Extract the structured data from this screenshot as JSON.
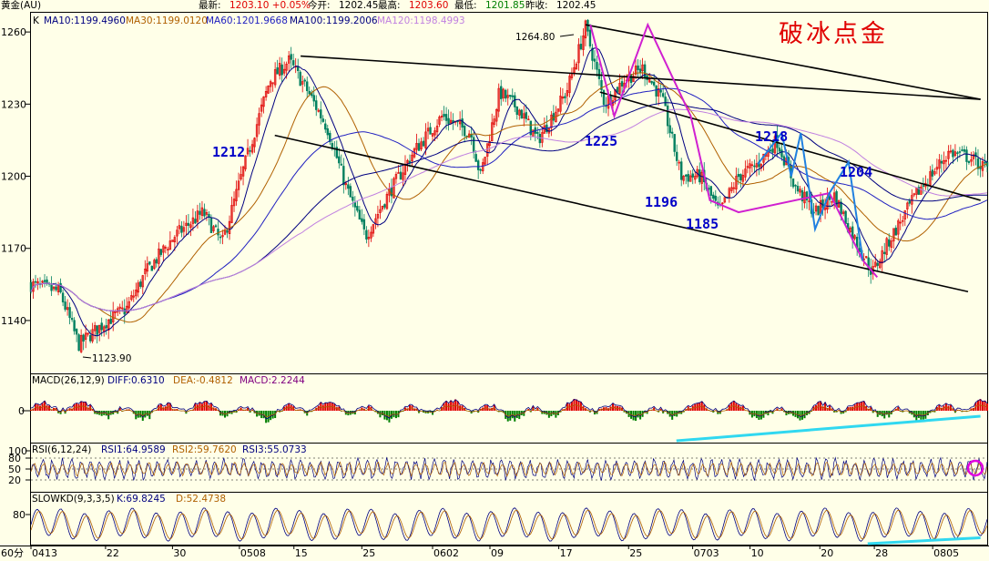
{
  "header": {
    "title": "黄金(AU)",
    "latest_label": "最新:",
    "latest": "1203.10 +0.05%",
    "open_label": "今开:",
    "open": "1202.45",
    "high_label": "最高:",
    "high": "1203.60",
    "low_label": "最低:",
    "low": "1201.85",
    "prev_label": "昨收:",
    "prev": "1202.45"
  },
  "main_panel": {
    "tag": "K",
    "ma_legend": [
      {
        "label": "MA10:1199.4960",
        "color": "#000080"
      },
      {
        "label": "MA30:1199.0120",
        "color": "#b06000"
      },
      {
        "label": "MA60:1201.9668",
        "color": "#2020c0"
      },
      {
        "label": "MA100:1199.2006",
        "color": "#000080"
      },
      {
        "label": "MA120:1198.4993",
        "color": "#c080e0"
      }
    ],
    "title": "破冰点金",
    "title_color": "#e00000",
    "price_labels": {
      "high": "1264.80",
      "low": "1123.90"
    },
    "annotations": [
      "1212",
      "1225",
      "1196",
      "1185",
      "1218",
      "1204"
    ],
    "annotation_color": "#0000c8"
  },
  "macd_panel": {
    "label": "MACD(26,12,9)",
    "diff": "DIFF:0.6310",
    "dea": "DEA:-0.4812",
    "macd": "MACD:2.2244",
    "tick": "0"
  },
  "rsi_panel": {
    "label": "RSI(6,12,24)",
    "rsi1": "RSI1:64.9589",
    "rsi2": "RSI2:59.7620",
    "rsi3": "RSI3:55.0733"
  },
  "kd_panel": {
    "label": "SLOWKD(9,3,3,5)",
    "k": "K:69.8245",
    "d": "D:52.4738",
    "tick": "80"
  },
  "period_label": "60分",
  "chart_data": {
    "type": "line",
    "title": "破冰点金",
    "ylim": [
      1118,
      1268
    ],
    "y_ticks": [
      1140,
      1170,
      1200,
      1230,
      1260
    ],
    "rsi_ticks": [
      20,
      50,
      80,
      100
    ],
    "x_ticks": [
      "0413",
      "22",
      "30",
      "0508",
      "15",
      "25",
      "0602",
      "09",
      "17",
      "25",
      "0703",
      "10",
      "20",
      "28",
      "0805"
    ],
    "x_tick_pos": [
      0,
      0.078,
      0.148,
      0.218,
      0.275,
      0.346,
      0.42,
      0.48,
      0.552,
      0.625,
      0.692,
      0.752,
      0.825,
      0.882,
      0.943
    ],
    "price_path": [
      [
        0,
        1155
      ],
      [
        0.03,
        1152
      ],
      [
        0.05,
        1130
      ],
      [
        0.08,
        1140
      ],
      [
        0.1,
        1145
      ],
      [
        0.12,
        1160
      ],
      [
        0.15,
        1175
      ],
      [
        0.18,
        1185
      ],
      [
        0.2,
        1172
      ],
      [
        0.22,
        1200
      ],
      [
        0.25,
        1240
      ],
      [
        0.27,
        1248
      ],
      [
        0.29,
        1235
      ],
      [
        0.31,
        1220
      ],
      [
        0.33,
        1195
      ],
      [
        0.35,
        1175
      ],
      [
        0.37,
        1190
      ],
      [
        0.4,
        1210
      ],
      [
        0.43,
        1225
      ],
      [
        0.46,
        1218
      ],
      [
        0.47,
        1200
      ],
      [
        0.49,
        1235
      ],
      [
        0.51,
        1228
      ],
      [
        0.53,
        1215
      ],
      [
        0.56,
        1235
      ],
      [
        0.58,
        1262
      ],
      [
        0.6,
        1230
      ],
      [
        0.62,
        1240
      ],
      [
        0.64,
        1245
      ],
      [
        0.66,
        1232
      ],
      [
        0.68,
        1200
      ],
      [
        0.7,
        1200
      ],
      [
        0.72,
        1185
      ],
      [
        0.74,
        1200
      ],
      [
        0.76,
        1205
      ],
      [
        0.78,
        1215
      ],
      [
        0.8,
        1195
      ],
      [
        0.82,
        1185
      ],
      [
        0.84,
        1192
      ],
      [
        0.86,
        1175
      ],
      [
        0.88,
        1160
      ],
      [
        0.9,
        1175
      ],
      [
        0.93,
        1195
      ],
      [
        0.96,
        1210
      ],
      [
        0.98,
        1208
      ],
      [
        1,
        1203
      ]
    ],
    "pattern_zigzag_magenta": [
      [
        0.585,
        1263
      ],
      [
        0.61,
        1225
      ],
      [
        0.645,
        1263
      ],
      [
        0.69,
        1225
      ],
      [
        0.71,
        1190
      ],
      [
        0.74,
        1185
      ],
      [
        0.835,
        1193
      ],
      [
        0.87,
        1165
      ],
      [
        0.885,
        1158
      ]
    ],
    "pattern_zigzag_blue": [
      [
        0.76,
        1205
      ],
      [
        0.785,
        1218
      ],
      [
        0.795,
        1200
      ],
      [
        0.805,
        1218
      ],
      [
        0.82,
        1178
      ],
      [
        0.835,
        1193
      ],
      [
        0.855,
        1206
      ],
      [
        0.87,
        1165
      ]
    ],
    "channel_lines": [
      {
        "from": [
          0.282,
          1250
        ],
        "to": [
          0.993,
          1232
        ]
      },
      {
        "from": [
          0.255,
          1217
        ],
        "to": [
          0.98,
          1152
        ]
      },
      {
        "from": [
          0.58,
          1263
        ],
        "to": [
          0.993,
          1232
        ]
      },
      {
        "from": [
          0.595,
          1235
        ],
        "to": [
          0.993,
          1190
        ]
      }
    ],
    "indicator_trendlines": [
      {
        "panel": "macd",
        "from": [
          0.675,
          -1
        ],
        "to": [
          0.993,
          1
        ]
      },
      {
        "panel": "kd",
        "from": [
          0.875,
          0.05
        ],
        "to": [
          0.993,
          0.15
        ]
      }
    ]
  }
}
